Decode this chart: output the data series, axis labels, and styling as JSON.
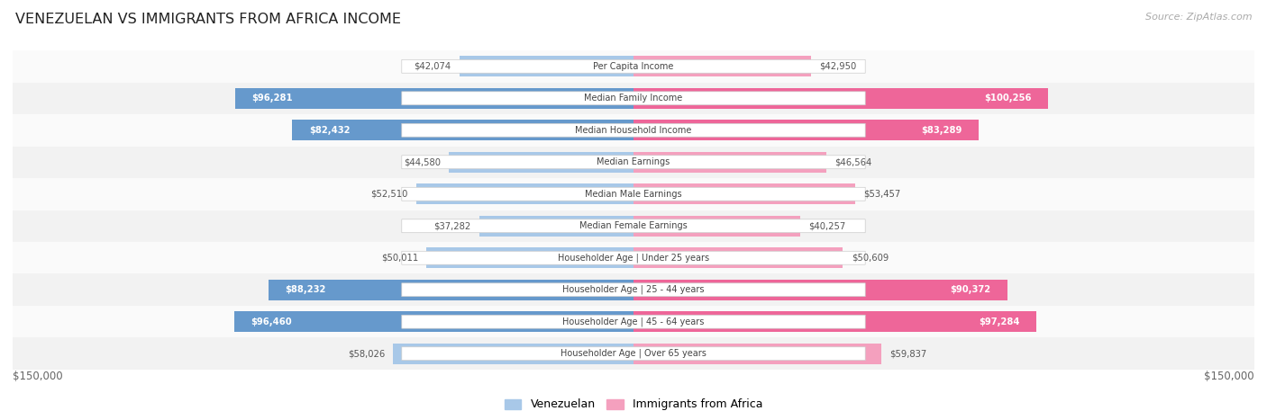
{
  "title": "VENEZUELAN VS IMMIGRANTS FROM AFRICA INCOME",
  "source": "Source: ZipAtlas.com",
  "categories": [
    "Per Capita Income",
    "Median Family Income",
    "Median Household Income",
    "Median Earnings",
    "Median Male Earnings",
    "Median Female Earnings",
    "Householder Age | Under 25 years",
    "Householder Age | 25 - 44 years",
    "Householder Age | 45 - 64 years",
    "Householder Age | Over 65 years"
  ],
  "venezuelan_values": [
    42074,
    96281,
    82432,
    44580,
    52510,
    37282,
    50011,
    88232,
    96460,
    58026
  ],
  "africa_values": [
    42950,
    100256,
    83289,
    46564,
    53457,
    40257,
    50609,
    90372,
    97284,
    59837
  ],
  "venezuelan_labels": [
    "$42,074",
    "$96,281",
    "$82,432",
    "$44,580",
    "$52,510",
    "$37,282",
    "$50,011",
    "$88,232",
    "$96,460",
    "$58,026"
  ],
  "africa_labels": [
    "$42,950",
    "$100,256",
    "$83,289",
    "$46,564",
    "$53,457",
    "$40,257",
    "$50,609",
    "$90,372",
    "$97,284",
    "$59,837"
  ],
  "max_val": 150000,
  "color_venezuelan_light": "#a8c8e8",
  "color_venezuelan_dark": "#6699cc",
  "color_africa_light": "#f4a0be",
  "color_africa_dark": "#ee6699",
  "row_bg_even": "#f2f2f2",
  "row_bg_odd": "#fafafa",
  "label_dark_threshold": 70000,
  "legend_venezuelan": "Venezuelan",
  "legend_africa": "Immigrants from Africa",
  "x_label_left": "$150,000",
  "x_label_right": "$150,000"
}
